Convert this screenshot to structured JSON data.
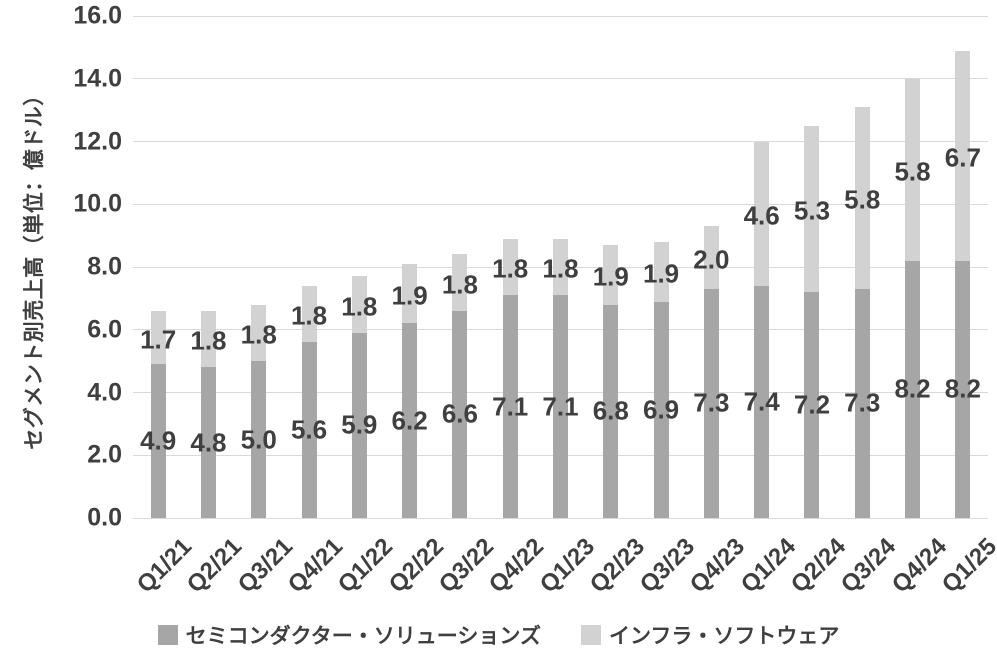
{
  "chart_data": {
    "type": "bar",
    "stacked": true,
    "categories": [
      "Q1/21",
      "Q2/21",
      "Q3/21",
      "Q4/21",
      "Q1/22",
      "Q2/22",
      "Q3/22",
      "Q4/22",
      "Q1/23",
      "Q2/23",
      "Q3/23",
      "Q4/23",
      "Q1/24",
      "Q2/24",
      "Q3/24",
      "Q4/24",
      "Q1/25"
    ],
    "series": [
      {
        "name": "セミコンダクター・ソリューションズ",
        "color": "#a6a6a6",
        "values": [
          4.9,
          4.8,
          5.0,
          5.6,
          5.9,
          6.2,
          6.6,
          7.1,
          7.1,
          6.8,
          6.9,
          7.3,
          7.4,
          7.2,
          7.3,
          8.2,
          8.2
        ]
      },
      {
        "name": "インフラ・ソフトウェア",
        "color": "#d2d2d2",
        "values": [
          1.7,
          1.8,
          1.8,
          1.8,
          1.8,
          1.9,
          1.8,
          1.8,
          1.8,
          1.9,
          1.9,
          2.0,
          4.6,
          5.3,
          5.8,
          5.8,
          6.7
        ]
      }
    ],
    "title": "",
    "xlabel": "",
    "ylabel": "セグメント別売上高（単位：億ドル）",
    "ylim": [
      0,
      16
    ],
    "ytick_step": 2,
    "ytick_labels": [
      "0.0",
      "2.0",
      "4.0",
      "6.0",
      "8.0",
      "10.0",
      "12.0",
      "14.0",
      "16.0"
    ],
    "grid": true,
    "legend_position": "bottom",
    "value_labels": "shown-at-segment-center",
    "colors": {
      "text": "#3f3f3f",
      "gridline": "#d9d9d9",
      "background": "#ffffff"
    }
  }
}
